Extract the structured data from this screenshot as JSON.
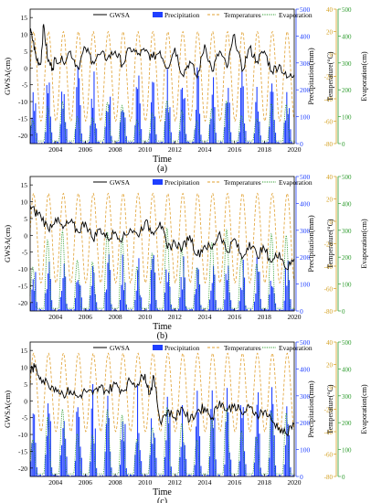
{
  "figure": {
    "colors": {
      "gwsa": "#000000",
      "precipitation": "#1f3fff",
      "temperature": "#e0a030",
      "evaporation": "#2e9c2e",
      "axis": "#000000",
      "precip_axis": "#1f3fff",
      "temp_axis": "#d4a020",
      "evap_axis": "#2e9c2e"
    }
  },
  "chart_data": [
    {
      "type": "line",
      "panel_label": "(a)",
      "xlabel": "Time",
      "ylabel_left": "GWSA(cm)",
      "ylabel_right1": "Precipitation(mm)",
      "ylabel_right2": "Temperature(°C)",
      "ylabel_right3": "Evaporation(cm)",
      "x_ticks": [
        "2004",
        "2006",
        "2008",
        "2010",
        "2012",
        "2014",
        "2016",
        "2018",
        "2020"
      ],
      "xlim": [
        2002.3,
        2020.0
      ],
      "y_left_ticks": [
        "15",
        "10",
        "5",
        "0",
        "-5",
        "-10",
        "-15",
        "-20"
      ],
      "ylim_left": [
        -22.5,
        17.5
      ],
      "precip_ticks": [
        "500",
        "400",
        "300",
        "200",
        "100",
        "0"
      ],
      "ylim_precip": [
        0,
        500
      ],
      "temp_ticks": [
        "40",
        "20",
        "0",
        "-20",
        "-40",
        "-60",
        "-80"
      ],
      "ylim_temp": [
        -80,
        40
      ],
      "evap_ticks": [
        "500",
        "400",
        "300",
        "200",
        "100",
        "0"
      ],
      "ylim_evap": [
        0,
        500
      ],
      "legend": [
        "GWSA",
        "Precipitation",
        "Temperatures",
        "Evaporation"
      ],
      "legend_position": "top",
      "series": [
        {
          "name": "GWSA",
          "x": [
            2002.3,
            2002.5,
            2002.7,
            2003.0,
            2003.2,
            2003.5,
            2003.8,
            2004.0,
            2004.5,
            2005.0,
            2005.5,
            2006.0,
            2006.5,
            2007.0,
            2007.5,
            2008.0,
            2008.5,
            2009.0,
            2009.5,
            2010.0,
            2010.5,
            2011.0,
            2011.5,
            2012.0,
            2012.5,
            2013.0,
            2013.5,
            2014.0,
            2014.5,
            2015.0,
            2015.5,
            2016.0,
            2016.5,
            2017.0,
            2017.5,
            2018.0,
            2018.5,
            2019.0,
            2019.5,
            2020.0
          ],
          "values": [
            11,
            8,
            3,
            1,
            13,
            2,
            0,
            3,
            2,
            5,
            0,
            6,
            2,
            4,
            3,
            5,
            1,
            6,
            4,
            5,
            3,
            5,
            0,
            6,
            -2,
            2,
            -3,
            7,
            -1,
            5,
            0,
            10,
            -1,
            6,
            2,
            5,
            -1,
            1,
            -3,
            -2
          ]
        },
        {
          "name": "Temperatures",
          "note_values": "seasonal cycle, roughly -60 to 20 °C"
        },
        {
          "name": "Evaporation",
          "note_values": "seasonal cycle, roughly 0 to 150 cm"
        },
        {
          "name": "Precipitation",
          "note_values": "monthly bars, peaks up to about 300 mm in summer"
        }
      ]
    },
    {
      "type": "line",
      "panel_label": "(b)",
      "xlabel": "Time",
      "ylabel_left": "GWSA(cm)",
      "ylabel_right1": "Precipitation(mm)",
      "ylabel_right2": "Temperature(°C)",
      "ylabel_right3": "Evaporation(cm)",
      "x_ticks": [
        "2004",
        "2006",
        "2008",
        "2010",
        "2012",
        "2014",
        "2016",
        "2018",
        "2020"
      ],
      "xlim": [
        2002.3,
        2020.0
      ],
      "y_left_ticks": [
        "15",
        "10",
        "5",
        "0",
        "-5",
        "-10",
        "-15",
        "-20"
      ],
      "ylim_left": [
        -22.5,
        17.5
      ],
      "precip_ticks": [
        "500",
        "400",
        "300",
        "200",
        "100",
        "0"
      ],
      "ylim_precip": [
        0,
        500
      ],
      "temp_ticks": [
        "40",
        "20",
        "0",
        "-20",
        "-40",
        "-60",
        "-80"
      ],
      "ylim_temp": [
        -80,
        40
      ],
      "evap_ticks": [
        "500",
        "400",
        "300",
        "200",
        "100",
        "0"
      ],
      "ylim_evap": [
        0,
        500
      ],
      "legend": [
        "GWSA",
        "Precipitation",
        "Temperatures",
        "Evaporation"
      ],
      "legend_position": "top",
      "series": [
        {
          "name": "GWSA",
          "x": [
            2002.3,
            2002.6,
            2003.0,
            2003.5,
            2004.0,
            2004.5,
            2005.0,
            2005.5,
            2006.0,
            2006.5,
            2007.0,
            2007.5,
            2008.0,
            2008.5,
            2009.0,
            2009.5,
            2010.0,
            2010.5,
            2011.0,
            2011.5,
            2012.0,
            2012.5,
            2013.0,
            2013.5,
            2014.0,
            2014.5,
            2015.0,
            2015.5,
            2016.0,
            2016.5,
            2017.0,
            2017.5,
            2018.0,
            2018.5,
            2019.0,
            2019.5,
            2020.0
          ],
          "values": [
            9,
            7,
            6,
            2,
            5,
            2,
            4,
            1,
            4,
            -1,
            2,
            -1,
            1,
            -1,
            2,
            0,
            4,
            1,
            4,
            -4,
            -2,
            -4,
            0,
            -6,
            -3,
            -4,
            1,
            -5,
            -1,
            -7,
            -2,
            -6,
            -4,
            -8,
            -5,
            -10,
            -7
          ]
        },
        {
          "name": "Temperatures",
          "note_values": "seasonal cycle, roughly -55 to 25 °C"
        },
        {
          "name": "Evaporation",
          "note_values": "seasonal cycle, roughly 10 to 300 cm"
        },
        {
          "name": "Precipitation",
          "note_values": "monthly bars, peaks up to about 220 mm in summer"
        }
      ]
    },
    {
      "type": "line",
      "panel_label": "(c)",
      "xlabel": "Time",
      "ylabel_left": "GWSA(cm)",
      "ylabel_right1": "Precipitation(mm)",
      "ylabel_right2": "Temperature(°C)",
      "ylabel_right3": "Evaporation(cm)",
      "x_ticks": [
        "2004",
        "2006",
        "2008",
        "2010",
        "2012",
        "2014",
        "2016",
        "2018",
        "2020"
      ],
      "xlim": [
        2002.3,
        2020.0
      ],
      "y_left_ticks": [
        "15",
        "10",
        "5",
        "0",
        "-5",
        "-10",
        "-15",
        "-20"
      ],
      "ylim_left": [
        -22.5,
        17.5
      ],
      "precip_ticks": [
        "500",
        "400",
        "300",
        "200",
        "100",
        "0"
      ],
      "ylim_precip": [
        0,
        500
      ],
      "temp_ticks": [
        "40",
        "20",
        "0",
        "-20",
        "-40",
        "-60",
        "-80"
      ],
      "ylim_temp": [
        -80,
        40
      ],
      "evap_ticks": [
        "500",
        "400",
        "300",
        "200",
        "100",
        "0"
      ],
      "ylim_evap": [
        0,
        500
      ],
      "legend": [
        "GWSA",
        "Precipitation",
        "Temperatures",
        "Evaporation"
      ],
      "legend_position": "top",
      "series": [
        {
          "name": "GWSA",
          "x": [
            2002.3,
            2002.6,
            2003.0,
            2003.5,
            2004.0,
            2004.5,
            2005.0,
            2005.5,
            2006.0,
            2006.5,
            2007.0,
            2007.5,
            2008.0,
            2008.5,
            2009.0,
            2009.5,
            2010.0,
            2010.3,
            2010.6,
            2011.0,
            2011.5,
            2012.0,
            2012.5,
            2013.0,
            2013.5,
            2014.0,
            2014.5,
            2015.0,
            2015.5,
            2016.0,
            2016.5,
            2017.0,
            2017.5,
            2018.0,
            2018.5,
            2019.0,
            2019.5,
            2020.0
          ],
          "values": [
            9,
            10,
            7,
            5,
            4,
            2,
            3,
            1,
            3,
            2,
            4,
            3,
            5,
            3,
            6,
            5,
            8,
            2,
            7,
            -6,
            -3,
            -5,
            -2,
            -6,
            -3,
            -2,
            -5,
            0,
            -3,
            -1,
            -4,
            -2,
            -4,
            -3,
            -6,
            -8,
            -10,
            -7
          ]
        },
        {
          "name": "Temperatures",
          "note_values": "seasonal cycle, roughly -40 to 30 °C"
        },
        {
          "name": "Evaporation",
          "note_values": "seasonal cycle, roughly 10 to 250 cm"
        },
        {
          "name": "Precipitation",
          "note_values": "monthly bars, peaks up to about 350 mm in summer"
        }
      ]
    }
  ]
}
